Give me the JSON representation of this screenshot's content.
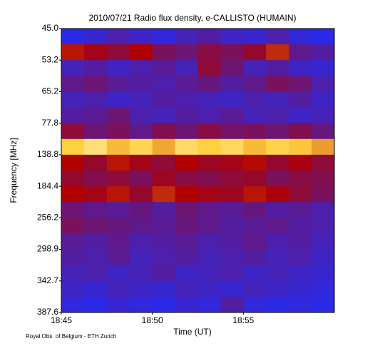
{
  "chart_data": {
    "type": "heatmap",
    "title": "2010/07/21  Radio flux density, e-CALLISTO (HUMAIN)",
    "x_label": "Time (UT)",
    "y_label": "Frequency [MHz]",
    "footer": "Royal Obs. of Belgium - ETH Zurich",
    "xlim": [
      1125,
      1140
    ],
    "xticks": [
      {
        "value": 1125,
        "label": "18:45"
      },
      {
        "value": 1130,
        "label": "18:50"
      },
      {
        "value": 1135,
        "label": "18:55"
      }
    ],
    "y_labels": [
      "45.0",
      "53.2",
      "65.2",
      "77.8",
      "138.8",
      "184.4",
      "256.2",
      "298.9",
      "342.7",
      "387.6"
    ],
    "colorscale": [
      "#000030",
      "#14148c",
      "#2a2ae6",
      "#b00000",
      "#ffd040",
      "#ffffff"
    ],
    "z": [
      [
        0.4,
        0.42,
        0.45,
        0.43,
        0.41,
        0.44,
        0.46,
        0.43,
        0.42,
        0.45,
        0.41,
        0.4
      ],
      [
        0.62,
        0.58,
        0.55,
        0.6,
        0.52,
        0.5,
        0.54,
        0.52,
        0.56,
        0.64,
        0.48,
        0.46
      ],
      [
        0.44,
        0.46,
        0.43,
        0.45,
        0.47,
        0.44,
        0.55,
        0.5,
        0.44,
        0.46,
        0.43,
        0.42
      ],
      [
        0.48,
        0.5,
        0.47,
        0.46,
        0.45,
        0.47,
        0.49,
        0.46,
        0.48,
        0.52,
        0.5,
        0.45
      ],
      [
        0.44,
        0.45,
        0.43,
        0.44,
        0.46,
        0.45,
        0.44,
        0.43,
        0.45,
        0.44,
        0.46,
        0.43
      ],
      [
        0.46,
        0.47,
        0.5,
        0.45,
        0.44,
        0.46,
        0.45,
        0.47,
        0.44,
        0.45,
        0.43,
        0.44
      ],
      [
        0.55,
        0.5,
        0.52,
        0.48,
        0.53,
        0.5,
        0.54,
        0.51,
        0.52,
        0.5,
        0.53,
        0.49
      ],
      [
        0.8,
        0.86,
        0.78,
        0.82,
        0.76,
        0.84,
        0.8,
        0.83,
        0.78,
        0.81,
        0.79,
        0.75
      ],
      [
        0.6,
        0.56,
        0.62,
        0.58,
        0.55,
        0.6,
        0.57,
        0.58,
        0.61,
        0.56,
        0.59,
        0.55
      ],
      [
        0.56,
        0.53,
        0.55,
        0.52,
        0.57,
        0.54,
        0.53,
        0.55,
        0.56,
        0.52,
        0.54,
        0.53
      ],
      [
        0.6,
        0.58,
        0.62,
        0.56,
        0.64,
        0.6,
        0.58,
        0.57,
        0.62,
        0.59,
        0.55,
        0.52
      ],
      [
        0.5,
        0.48,
        0.47,
        0.49,
        0.46,
        0.5,
        0.48,
        0.47,
        0.49,
        0.46,
        0.47,
        0.45
      ],
      [
        0.52,
        0.5,
        0.49,
        0.48,
        0.47,
        0.49,
        0.48,
        0.46,
        0.47,
        0.48,
        0.46,
        0.45
      ],
      [
        0.47,
        0.46,
        0.48,
        0.45,
        0.46,
        0.47,
        0.45,
        0.46,
        0.48,
        0.45,
        0.46,
        0.44
      ],
      [
        0.46,
        0.45,
        0.47,
        0.44,
        0.45,
        0.46,
        0.44,
        0.45,
        0.46,
        0.44,
        0.45,
        0.43
      ],
      [
        0.44,
        0.45,
        0.43,
        0.44,
        0.46,
        0.43,
        0.44,
        0.45,
        0.43,
        0.44,
        0.43,
        0.42
      ],
      [
        0.43,
        0.42,
        0.44,
        0.43,
        0.42,
        0.44,
        0.43,
        0.42,
        0.44,
        0.43,
        0.42,
        0.41
      ],
      [
        0.41,
        0.4,
        0.42,
        0.41,
        0.4,
        0.42,
        0.41,
        0.46,
        0.41,
        0.4,
        0.41,
        0.4
      ]
    ]
  }
}
